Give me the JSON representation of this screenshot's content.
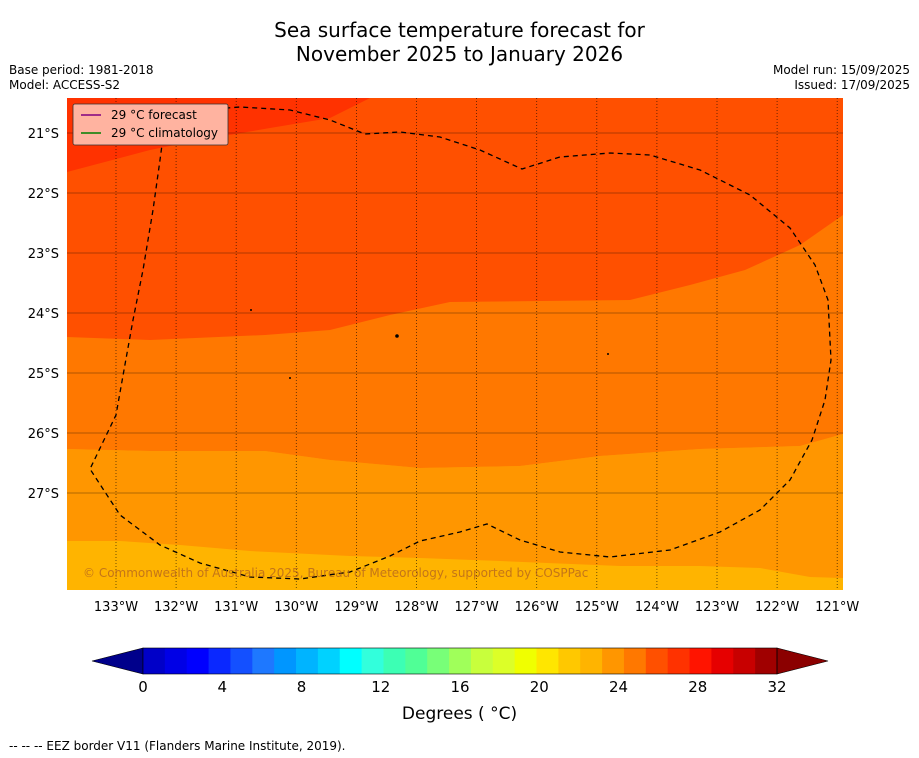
{
  "title_line1": "Sea surface temperature forecast for",
  "title_line2": "November 2025 to January 2026",
  "base_period": "Base period: 1981-2018",
  "model": "Model: ACCESS-S2",
  "model_run": "Model run: 15/09/2025",
  "issued": "Issued: 17/09/2025",
  "legend": {
    "forecast_label": "29 °C  forecast",
    "climatology_label": "29 °C  climatology",
    "forecast_color": "#800080",
    "climatology_color": "#008000"
  },
  "copyright": "© Commonwealth of Australia 2025, Bureau of Meteorology, supported by COSPPac",
  "lat_labels": [
    "21°S",
    "22°S",
    "23°S",
    "24°S",
    "25°S",
    "26°S",
    "27°S"
  ],
  "lon_labels": [
    "133°W",
    "132°W",
    "131°W",
    "130°W",
    "129°W",
    "128°W",
    "127°W",
    "126°W",
    "125°W",
    "124°W",
    "123°W",
    "122°W",
    "121°W"
  ],
  "colorbar": {
    "ticks": [
      "0",
      "4",
      "8",
      "12",
      "16",
      "20",
      "24",
      "28",
      "32"
    ],
    "label": "Degrees ( °C)",
    "colors": [
      "#00008b",
      "#0000c8",
      "#0000e6",
      "#0000ff",
      "#0a28ff",
      "#1450ff",
      "#1e78ff",
      "#0096ff",
      "#00b4ff",
      "#00d2ff",
      "#00ffff",
      "#32ffdc",
      "#3cffb4",
      "#50ff96",
      "#78ff78",
      "#a0ff5a",
      "#c8ff3c",
      "#dcff28",
      "#f0ff00",
      "#ffe600",
      "#ffc800",
      "#ffb400",
      "#ff9600",
      "#ff7800",
      "#ff5000",
      "#ff3200",
      "#ff1400",
      "#e60000",
      "#c80000",
      "#a00000",
      "#8b0000"
    ]
  },
  "map_colors": {
    "t29_30": "#ff5000",
    "t28_29": "#ff7800",
    "t27_28": "#ff9600",
    "t26_27": "#ffb400",
    "t30_31": "#ff3200"
  },
  "footnote": "--  --  -- EEZ border V11 (Flanders Marine Institute, 2019)."
}
